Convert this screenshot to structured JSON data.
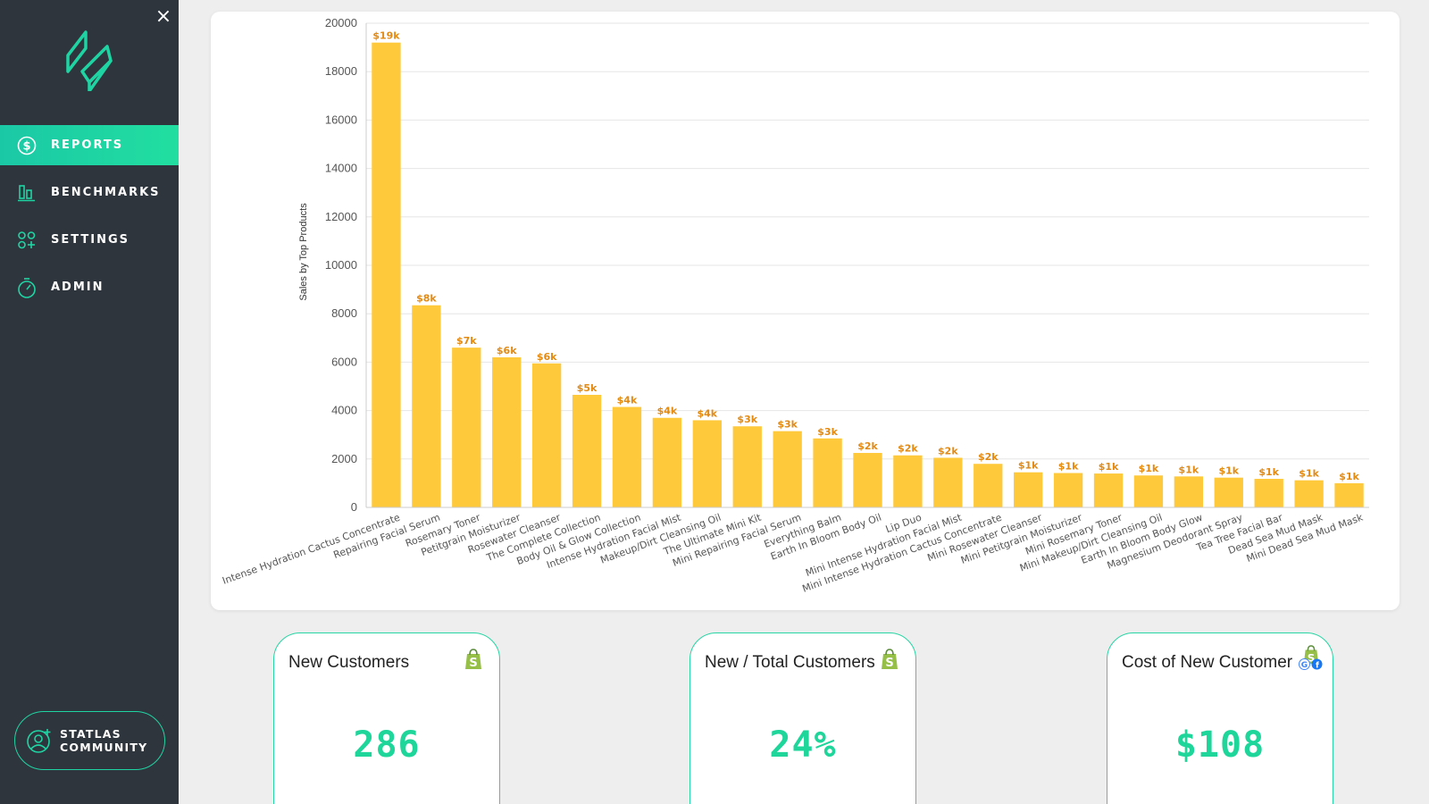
{
  "sidebar": {
    "close_icon": "×",
    "items": [
      {
        "label": "REPORTS",
        "icon": "dollar-circle-icon",
        "active": true
      },
      {
        "label": "BENCHMARKS",
        "icon": "bar-columns-icon",
        "active": false
      },
      {
        "label": "SETTINGS",
        "icon": "grid-plus-icon",
        "active": false
      },
      {
        "label": "ADMIN",
        "icon": "stopwatch-icon",
        "active": false
      }
    ],
    "community": {
      "line1": "STATLAS",
      "line2": "COMMUNITY"
    }
  },
  "colors": {
    "sidebar_bg": "#2f353d",
    "accent": "#1fd4a3",
    "bar": "#ffc93c",
    "bar_label": "#e38a12",
    "kpi_value": "#1ed59a"
  },
  "chart_data": {
    "type": "bar",
    "ylabel": "Sales by Top Products",
    "ylim": [
      0,
      20000
    ],
    "yticks": [
      0,
      2000,
      4000,
      6000,
      8000,
      10000,
      12000,
      14000,
      16000,
      18000,
      20000
    ],
    "grid": true,
    "categories": [
      "Intense Hydration Cactus Concentrate",
      "Repairing Facial Serum",
      "Rosemary Toner",
      "Petitgrain Moisturizer",
      "Rosewater Cleanser",
      "The Complete Collection",
      "Body Oil & Glow Collection",
      "Intense Hydration Facial Mist",
      "Makeup/Dirt Cleansing Oil",
      "The Ultimate Mini Kit",
      "Mini Repairing Facial Serum",
      "Everything Balm",
      "Earth In Bloom Body Oil",
      "Lip Duo",
      "Mini Intense Hydration Facial Mist",
      "Mini Intense Hydration Cactus Concentrate",
      "Mini Rosewater Cleanser",
      "Mini Petitgrain Moisturizer",
      "Mini Rosemary Toner",
      "Mini Makeup/Dirt Cleansing Oil",
      "Earth In Bloom Body Glow",
      "Magnesium Deodorant Spray",
      "Tea Tree Facial Bar",
      "Dead Sea Mud Mask",
      "Mini Dead Sea Mud Mask"
    ],
    "values": [
      19200,
      8350,
      6600,
      6200,
      5950,
      4650,
      4150,
      3700,
      3600,
      3350,
      3150,
      2850,
      2250,
      2150,
      2050,
      1800,
      1450,
      1420,
      1400,
      1320,
      1280,
      1230,
      1180,
      1120,
      1000
    ],
    "labels": [
      "$19k",
      "$8k",
      "$7k",
      "$6k",
      "$6k",
      "$5k",
      "$4k",
      "$4k",
      "$4k",
      "$3k",
      "$3k",
      "$3k",
      "$2k",
      "$2k",
      "$2k",
      "$2k",
      "$1k",
      "$1k",
      "$1k",
      "$1k",
      "$1k",
      "$1k",
      "$1k",
      "$1k",
      "$1k"
    ]
  },
  "kpis": [
    {
      "title": "New Customers",
      "value": "286",
      "icons": [
        "shopify-icon"
      ]
    },
    {
      "title": "New / Total Customers",
      "value": "24%",
      "icons": [
        "shopify-icon"
      ]
    },
    {
      "title": "Cost of New Customer",
      "value": "$108",
      "icons": [
        "shopify-icon",
        "google-icon",
        "facebook-icon"
      ]
    }
  ]
}
